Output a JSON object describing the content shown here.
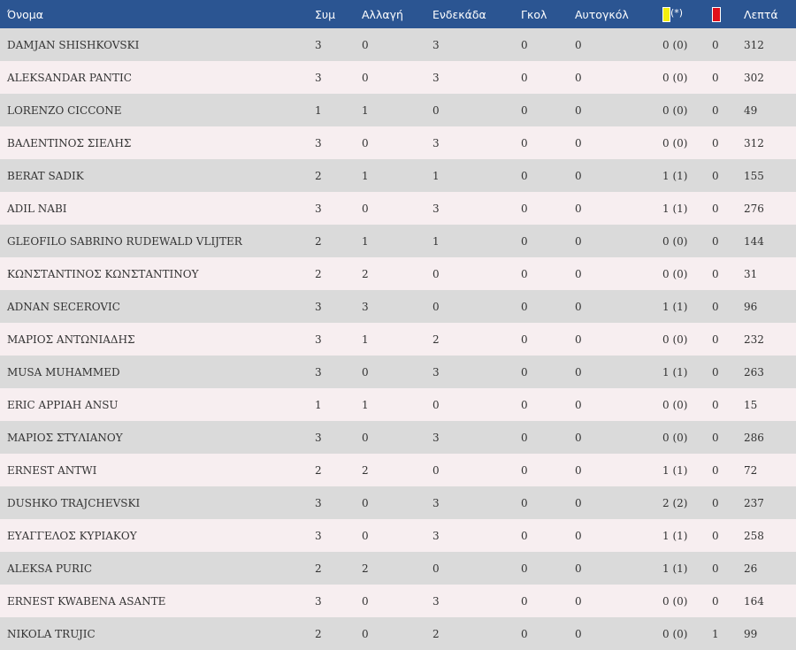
{
  "header": {
    "name": "Όνομα",
    "apps": "Συμ",
    "sub": "Αλλαγή",
    "starting": "Ενδεκάδα",
    "goals": "Γκολ",
    "own_goals": "Αυτογκόλ",
    "yellow_note": "(*)",
    "minutes": "Λεπτά"
  },
  "card_colors": {
    "yellow": "#f4ee0e",
    "red": "#e0101a"
  },
  "header_color": "#2b5592",
  "players": [
    {
      "name": "DAMJAN SHISHKOVSKI",
      "apps": "3",
      "sub": "0",
      "starting": "3",
      "goals": "0",
      "own_goals": "0",
      "yellow": "0 (0)",
      "red": "0",
      "minutes": "312"
    },
    {
      "name": "ALEKSANDAR PANTIC",
      "apps": "3",
      "sub": "0",
      "starting": "3",
      "goals": "0",
      "own_goals": "0",
      "yellow": "0 (0)",
      "red": "0",
      "minutes": "302"
    },
    {
      "name": "LORENZO CICCONE",
      "apps": "1",
      "sub": "1",
      "starting": "0",
      "goals": "0",
      "own_goals": "0",
      "yellow": "0 (0)",
      "red": "0",
      "minutes": "49"
    },
    {
      "name": "ΒΑΛΕΝΤΙΝΟΣ ΣΙΕΛΗΣ",
      "apps": "3",
      "sub": "0",
      "starting": "3",
      "goals": "0",
      "own_goals": "0",
      "yellow": "0 (0)",
      "red": "0",
      "minutes": "312"
    },
    {
      "name": "BERAT SADIK",
      "apps": "2",
      "sub": "1",
      "starting": "1",
      "goals": "0",
      "own_goals": "0",
      "yellow": "1 (1)",
      "red": "0",
      "minutes": "155"
    },
    {
      "name": "ADIL NABI",
      "apps": "3",
      "sub": "0",
      "starting": "3",
      "goals": "0",
      "own_goals": "0",
      "yellow": "1 (1)",
      "red": "0",
      "minutes": "276"
    },
    {
      "name": "GLEOFILO SABRINO RUDEWALD VLIJTER",
      "apps": "2",
      "sub": "1",
      "starting": "1",
      "goals": "0",
      "own_goals": "0",
      "yellow": "0 (0)",
      "red": "0",
      "minutes": "144"
    },
    {
      "name": "ΚΩΝΣΤΑΝΤΙΝΟΣ ΚΩΝΣΤΑΝΤΙΝΟΥ",
      "apps": "2",
      "sub": "2",
      "starting": "0",
      "goals": "0",
      "own_goals": "0",
      "yellow": "0 (0)",
      "red": "0",
      "minutes": "31"
    },
    {
      "name": "ADNAN SECEROVIC",
      "apps": "3",
      "sub": "3",
      "starting": "0",
      "goals": "0",
      "own_goals": "0",
      "yellow": "1 (1)",
      "red": "0",
      "minutes": "96"
    },
    {
      "name": "ΜΑΡΙΟΣ ΑΝΤΩΝΙΑΔΗΣ",
      "apps": "3",
      "sub": "1",
      "starting": "2",
      "goals": "0",
      "own_goals": "0",
      "yellow": "0 (0)",
      "red": "0",
      "minutes": "232"
    },
    {
      "name": "MUSA MUHAMMED",
      "apps": "3",
      "sub": "0",
      "starting": "3",
      "goals": "0",
      "own_goals": "0",
      "yellow": "1 (1)",
      "red": "0",
      "minutes": "263"
    },
    {
      "name": "ERIC APPIAH ANSU",
      "apps": "1",
      "sub": "1",
      "starting": "0",
      "goals": "0",
      "own_goals": "0",
      "yellow": "0 (0)",
      "red": "0",
      "minutes": "15"
    },
    {
      "name": "ΜΑΡΙΟΣ ΣΤΥΛΙΑΝΟΥ",
      "apps": "3",
      "sub": "0",
      "starting": "3",
      "goals": "0",
      "own_goals": "0",
      "yellow": "0 (0)",
      "red": "0",
      "minutes": "286"
    },
    {
      "name": "ERNEST ANTWI",
      "apps": "2",
      "sub": "2",
      "starting": "0",
      "goals": "0",
      "own_goals": "0",
      "yellow": "1 (1)",
      "red": "0",
      "minutes": "72"
    },
    {
      "name": "DUSHKO TRAJCHEVSKI",
      "apps": "3",
      "sub": "0",
      "starting": "3",
      "goals": "0",
      "own_goals": "0",
      "yellow": "2 (2)",
      "red": "0",
      "minutes": "237"
    },
    {
      "name": "ΕΥΑΓΓΕΛΟΣ ΚΥΡΙΑΚΟΥ",
      "apps": "3",
      "sub": "0",
      "starting": "3",
      "goals": "0",
      "own_goals": "0",
      "yellow": "1 (1)",
      "red": "0",
      "minutes": "258"
    },
    {
      "name": "ALEKSA PURIC",
      "apps": "2",
      "sub": "2",
      "starting": "0",
      "goals": "0",
      "own_goals": "0",
      "yellow": "1 (1)",
      "red": "0",
      "minutes": "26"
    },
    {
      "name": "ERNEST KWABENA ASANTE",
      "apps": "3",
      "sub": "0",
      "starting": "3",
      "goals": "0",
      "own_goals": "0",
      "yellow": "0 (0)",
      "red": "0",
      "minutes": "164"
    },
    {
      "name": "NIKOLA TRUJIC",
      "apps": "2",
      "sub": "0",
      "starting": "2",
      "goals": "0",
      "own_goals": "0",
      "yellow": "0 (0)",
      "red": "1",
      "minutes": "99"
    }
  ]
}
